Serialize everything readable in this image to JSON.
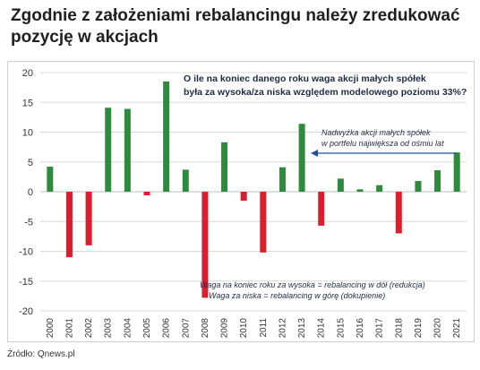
{
  "title": "Zgodnie z założeniami rebalancingu należy zredukować pozycję w akcjach",
  "source": "Źródło: Qnews.pl",
  "colors": {
    "positive": "#2e8b3e",
    "negative": "#d91e2e",
    "grid": "#d9d9d9",
    "axis": "#bfbfbf",
    "text": "#333333"
  },
  "chart_data": {
    "type": "bar",
    "title": "O ile na koniec danego roku waga akcji małych spółek była za wysoka/za niska względem modelowego poziomu 33%?",
    "xlabel": "",
    "ylabel": "",
    "ylim": [
      -20,
      20
    ],
    "yticks": [
      20,
      15,
      10,
      5,
      0,
      -5,
      -10,
      -15,
      -20
    ],
    "categories": [
      "2000",
      "2001",
      "2002",
      "2003",
      "2004",
      "2005",
      "2006",
      "2007",
      "2008",
      "2009",
      "2010",
      "2011",
      "2012",
      "2013",
      "2014",
      "2015",
      "2016",
      "2017",
      "2018",
      "2019",
      "2020",
      "2021"
    ],
    "values": [
      4.2,
      -11,
      -9,
      14.1,
      13.9,
      -0.6,
      18.5,
      3.7,
      -17.8,
      8.3,
      -1.5,
      -10.2,
      4.1,
      11.4,
      -5.7,
      2.2,
      0.4,
      1.1,
      -7,
      1.8,
      3.6,
      6.6
    ],
    "grid": true,
    "annotations": [
      "Nadwyżka akcji małych spółek w portfelu największa od ośmiu lat",
      "Waga na koniec roku za wysoka = rebalancing w dół (redukcja)",
      "Waga za niska = rebalancing w górę (dokupienie)"
    ]
  }
}
